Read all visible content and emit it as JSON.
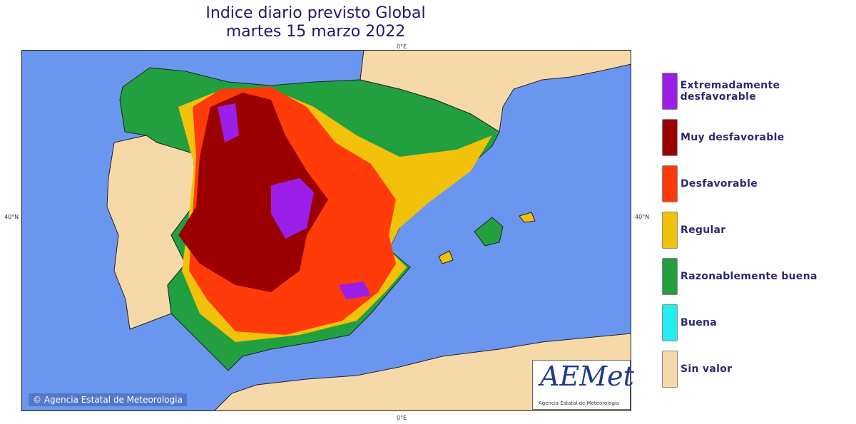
{
  "title": {
    "line1": "Indice diario previsto Global",
    "line2": "martes 15 marzo 2022"
  },
  "axes": {
    "top": "0°E",
    "bottom": "0°E",
    "left": "40°N",
    "right": "40°N"
  },
  "colors": {
    "ocean": "#6b96f0",
    "land": "#f6d9a8",
    "purple": "#9b1fe8",
    "darkred": "#9b0000",
    "orange": "#ff3b0a",
    "yellow": "#f2c20a",
    "green": "#22a040",
    "cyan": "#22eeee",
    "beige": "#f6d9a8"
  },
  "legend": [
    {
      "label": "Extremadamente desfavorable",
      "color": "#9b1fe8"
    },
    {
      "label": "Muy desfavorable",
      "color": "#9b0000"
    },
    {
      "label": "Desfavorable",
      "color": "#ff3b0a"
    },
    {
      "label": "Regular",
      "color": "#f2c20a"
    },
    {
      "label": "Razonablemente buena",
      "color": "#22a040"
    },
    {
      "label": "Buena",
      "color": "#22eeee"
    },
    {
      "label": "Sin valor",
      "color": "#f6d9a8"
    }
  ],
  "copyright": "© Agencia Estatal de Meteorologia",
  "logo": {
    "text": "AEMet",
    "subtitle": "Agencia Estatal de Meteorologia"
  }
}
